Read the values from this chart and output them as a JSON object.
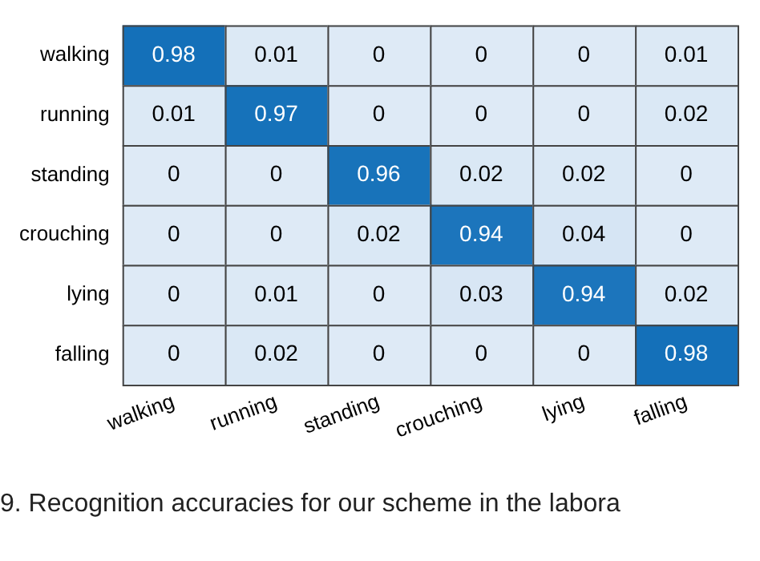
{
  "chart_data": {
    "type": "heatmap",
    "categories": [
      "walking",
      "running",
      "standing",
      "crouching",
      "lying",
      "falling"
    ],
    "y_categories": [
      "walking",
      "running",
      "standing",
      "crouching",
      "lying",
      "falling"
    ],
    "cells": [
      [
        0.98,
        0.01,
        0,
        0,
        0,
        0.01
      ],
      [
        0.01,
        0.97,
        0,
        0,
        0,
        0.02
      ],
      [
        0,
        0,
        0.96,
        0.02,
        0.02,
        0
      ],
      [
        0,
        0,
        0.02,
        0.94,
        0.04,
        0
      ],
      [
        0,
        0.01,
        0,
        0.03,
        0.94,
        0.02
      ],
      [
        0,
        0.02,
        0,
        0,
        0,
        0.98
      ]
    ],
    "data_labels": true,
    "annotations": [
      "9. Recognition accuracies for our scheme in the labora"
    ]
  }
}
